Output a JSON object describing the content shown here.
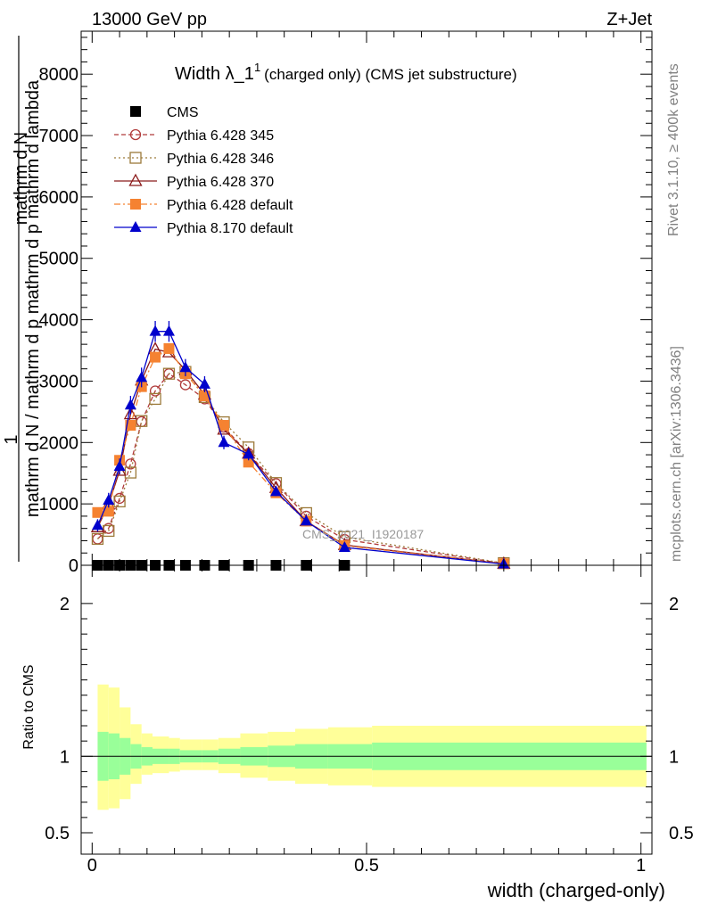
{
  "header": {
    "energy_label": "13000 GeV pp",
    "process_label": "Z+Jet"
  },
  "side_labels": {
    "rivet": "Rivet 3.1.10, ≥ 400k events",
    "mcplots": "mcplots.cern.ch [arXiv:1306.3436]"
  },
  "chart_data": {
    "type": "line",
    "title": "Width λ_1",
    "title_sup": "1",
    "subtitle": "(charged only) (CMS jet substructure)",
    "watermark": "CMS_2021_I1920187",
    "xlabel": "width (charged-only)",
    "ylabel_parts": [
      "1",
      "mathrm d N",
      "mathrm d N / mathrm d p",
      "mathrm d p",
      "mathrm d lambda"
    ],
    "ylabel_numerator_lines": [
      "mathrm d p",
      "mathrm d N"
    ],
    "ylabel_numerator_frac": "1",
    "ylabel_denominator": "mathrm d N / mathrm d p mathrm d p mathrm d lambda",
    "xlim": [
      -0.02,
      1.02
    ],
    "ylim": [
      0,
      8700
    ],
    "x_ticks": [
      0,
      0.5,
      1
    ],
    "x_tick_labels": [
      "0",
      "0.5",
      "1"
    ],
    "y_ticks": [
      0,
      1000,
      2000,
      3000,
      4000,
      5000,
      6000,
      7000,
      8000
    ],
    "y_tick_labels": [
      "0",
      "1000",
      "2000",
      "3000",
      "4000",
      "5000",
      "6000",
      "7000",
      "8000"
    ],
    "legend_position": "top-left",
    "series": [
      {
        "name": "CMS",
        "color": "#000000",
        "marker": "filled-square",
        "line": "none",
        "x": [
          0.01,
          0.03,
          0.05,
          0.07,
          0.09,
          0.115,
          0.14,
          0.17,
          0.205,
          0.24,
          0.285,
          0.335,
          0.39,
          0.46
        ],
        "y": [
          0,
          0,
          0,
          0,
          0,
          0,
          0,
          0,
          0,
          0,
          0,
          0,
          0,
          0
        ]
      },
      {
        "name": "Pythia 6.428 345",
        "color": "#b03a3a",
        "marker": "open-circle",
        "line": "dashed",
        "x": [
          0.01,
          0.03,
          0.05,
          0.07,
          0.09,
          0.115,
          0.14,
          0.17,
          0.205,
          0.24,
          0.285,
          0.335,
          0.39,
          0.46,
          0.75
        ],
        "y": [
          430,
          600,
          1090,
          1650,
          2340,
          2840,
          3120,
          2940,
          2710,
          2250,
          1820,
          1330,
          800,
          420,
          30
        ]
      },
      {
        "name": "Pythia 6.428 346",
        "color": "#9c7a3a",
        "marker": "open-square",
        "line": "dotted",
        "x": [
          0.01,
          0.03,
          0.05,
          0.07,
          0.09,
          0.115,
          0.14,
          0.17,
          0.205,
          0.24,
          0.285,
          0.335,
          0.39,
          0.46,
          0.75
        ],
        "y": [
          430,
          560,
          1040,
          1510,
          2350,
          2710,
          3120,
          3150,
          2740,
          2330,
          1920,
          1340,
          850,
          460,
          35
        ]
      },
      {
        "name": "Pythia 6.428 370",
        "color": "#8b1a1a",
        "marker": "open-triangle",
        "line": "solid",
        "x": [
          0.01,
          0.03,
          0.05,
          0.07,
          0.09,
          0.115,
          0.14,
          0.17,
          0.205,
          0.24,
          0.285,
          0.335,
          0.39,
          0.46,
          0.75
        ],
        "y": [
          620,
          990,
          1540,
          2460,
          3010,
          3520,
          3470,
          3180,
          2780,
          2210,
          1820,
          1260,
          720,
          330,
          25
        ]
      },
      {
        "name": "Pythia 6.428 default",
        "color": "#f58231",
        "marker": "filled-square",
        "line": "dashdot",
        "x": [
          0.01,
          0.03,
          0.05,
          0.07,
          0.09,
          0.115,
          0.14,
          0.17,
          0.205,
          0.24,
          0.285,
          0.335,
          0.39,
          0.46,
          0.75
        ],
        "y": [
          860,
          880,
          1710,
          2280,
          2910,
          3390,
          3530,
          3120,
          2760,
          2280,
          1680,
          1180,
          720,
          320,
          25
        ]
      },
      {
        "name": "Pythia 8.170 default",
        "color": "#0000cc",
        "marker": "filled-triangle",
        "line": "solid",
        "x": [
          0.01,
          0.03,
          0.05,
          0.07,
          0.09,
          0.115,
          0.14,
          0.17,
          0.205,
          0.24,
          0.285,
          0.335,
          0.39,
          0.46,
          0.75
        ],
        "y": [
          650,
          1060,
          1610,
          2610,
          3060,
          3810,
          3810,
          3220,
          2950,
          2000,
          1810,
          1200,
          720,
          290,
          20
        ],
        "yerr": [
          100,
          120,
          130,
          150,
          160,
          170,
          170,
          140,
          130,
          110,
          100,
          70,
          50,
          30,
          10
        ]
      }
    ],
    "ratio": {
      "ylabel": "Ratio to CMS",
      "ylim": [
        0.36,
        2.25
      ],
      "y_ticks": [
        0.5,
        1,
        2
      ],
      "y_tick_labels": [
        "0.5",
        "1",
        "2"
      ],
      "reference": 1,
      "bins": [
        0,
        0.02,
        0.04,
        0.06,
        0.08,
        0.1,
        0.13,
        0.15,
        0.19,
        0.22,
        0.26,
        0.31,
        0.36,
        0.42,
        0.5,
        1.0
      ],
      "inner_band_lo": [
        0.84,
        0.85,
        0.88,
        0.92,
        0.94,
        0.95,
        0.95,
        0.96,
        0.96,
        0.95,
        0.94,
        0.93,
        0.92,
        0.92,
        0.91
      ],
      "inner_band_hi": [
        1.16,
        1.15,
        1.12,
        1.08,
        1.06,
        1.05,
        1.05,
        1.04,
        1.04,
        1.05,
        1.06,
        1.07,
        1.08,
        1.08,
        1.09
      ],
      "outer_band_lo": [
        0.65,
        0.66,
        0.72,
        0.82,
        0.88,
        0.89,
        0.9,
        0.91,
        0.91,
        0.89,
        0.86,
        0.84,
        0.82,
        0.81,
        0.8
      ],
      "outer_band_hi": [
        1.47,
        1.45,
        1.32,
        1.21,
        1.15,
        1.13,
        1.12,
        1.11,
        1.11,
        1.12,
        1.15,
        1.16,
        1.18,
        1.19,
        1.2
      ],
      "inner_color": "#99ff99",
      "outer_color": "#ffff99"
    }
  }
}
